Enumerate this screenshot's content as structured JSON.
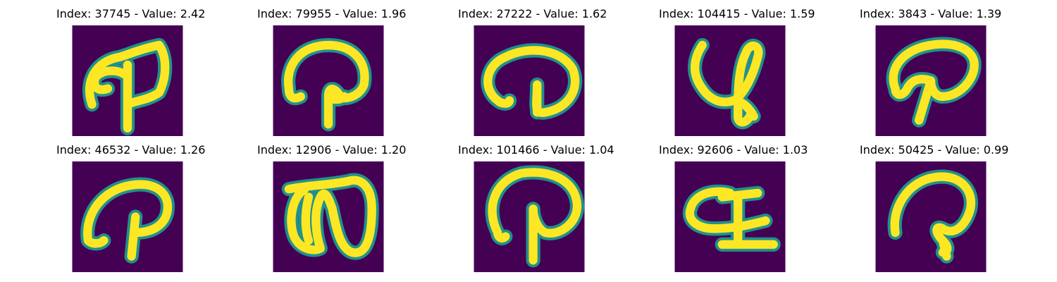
{
  "figure": {
    "panels": [
      {
        "title": "Index: 37745 - Value: 2.42",
        "glyph": "handwritten-character"
      },
      {
        "title": "Index: 79955 - Value: 1.96",
        "glyph": "handwritten-character"
      },
      {
        "title": "Index: 27222 - Value: 1.62",
        "glyph": "handwritten-character"
      },
      {
        "title": "Index: 104415 - Value: 1.59",
        "glyph": "handwritten-character"
      },
      {
        "title": "Index: 3843 - Value: 1.39",
        "glyph": "handwritten-character"
      },
      {
        "title": "Index: 46532 - Value: 1.26",
        "glyph": "handwritten-character"
      },
      {
        "title": "Index: 12906 - Value: 1.20",
        "glyph": "handwritten-character"
      },
      {
        "title": "Index: 101466 - Value: 1.04",
        "glyph": "handwritten-character"
      },
      {
        "title": "Index: 92606 - Value: 1.03",
        "glyph": "handwritten-character"
      },
      {
        "title": "Index: 50425 - Value: 0.99",
        "glyph": "handwritten-character"
      }
    ],
    "colors": {
      "background": "#440154",
      "stroke": "#fde725",
      "edge": "#21918c"
    }
  }
}
